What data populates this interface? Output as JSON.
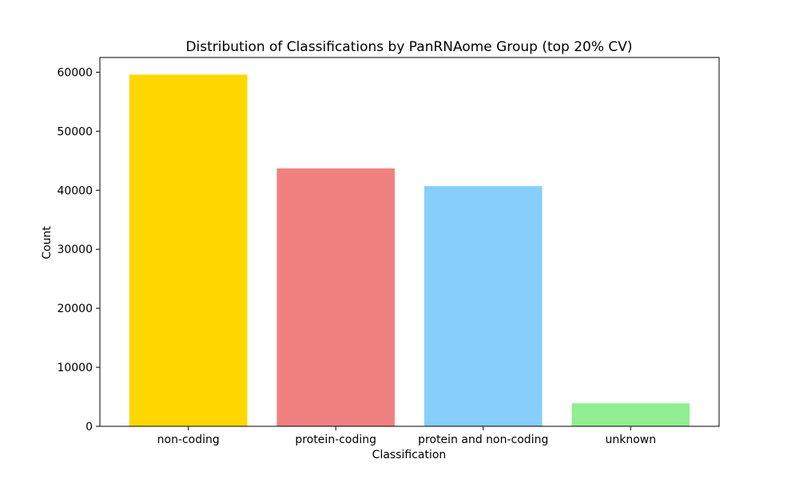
{
  "chart_data": {
    "type": "bar",
    "title": "Distribution of Classifications by PanRNAome Group (top 20% CV)",
    "xlabel": "Classification",
    "ylabel": "Count",
    "categories": [
      "non-coding",
      "protein-coding",
      "protein and non-coding",
      "unknown"
    ],
    "values": [
      59600,
      43700,
      40700,
      3900
    ],
    "colors": [
      "#FFD700",
      "#F08080",
      "#87CEFA",
      "#90EE90"
    ],
    "ylim": [
      0,
      62500
    ],
    "yticks": [
      0,
      10000,
      20000,
      30000,
      40000,
      50000,
      60000
    ],
    "grid": false,
    "legend": "none"
  }
}
